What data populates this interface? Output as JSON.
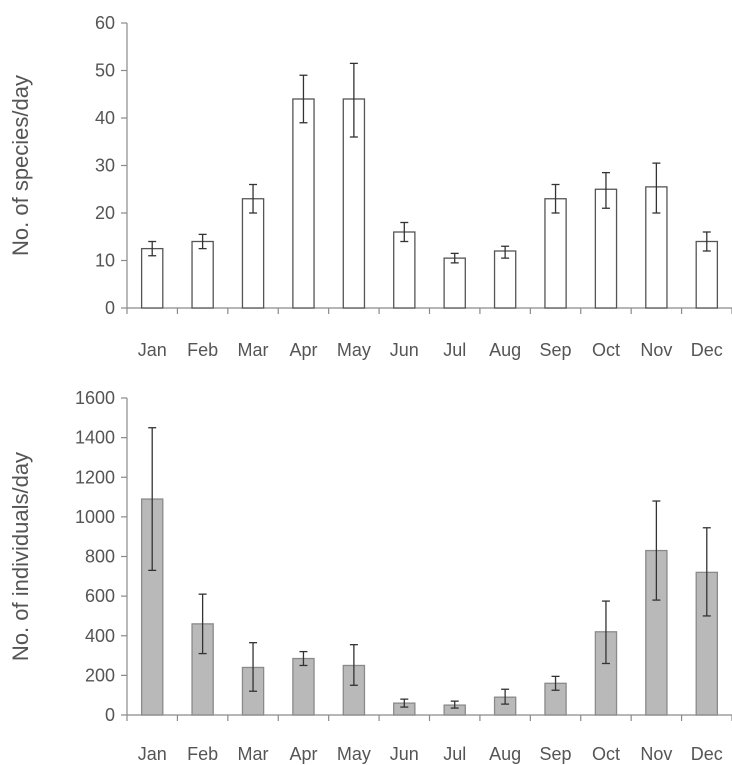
{
  "chart_data": [
    {
      "type": "bar",
      "title": "",
      "xlabel": "",
      "ylabel": "No. of species/day",
      "categories": [
        "Jan",
        "Feb",
        "Mar",
        "Apr",
        "May",
        "Jun",
        "Jul",
        "Aug",
        "Sep",
        "Oct",
        "Nov",
        "Dec"
      ],
      "values": [
        12.5,
        14,
        23,
        44,
        44,
        16,
        10.5,
        12,
        23,
        25,
        25.5,
        14
      ],
      "error_low": [
        11,
        12.5,
        20,
        39,
        36,
        14,
        9.5,
        10.5,
        20,
        21,
        20,
        12
      ],
      "error_high": [
        14,
        15.5,
        26,
        49,
        51.5,
        18,
        11.5,
        13,
        26,
        28.5,
        30.5,
        16
      ],
      "yticks": [
        "0",
        "10",
        "20",
        "30",
        "40",
        "50",
        "60"
      ],
      "ylim": [
        0,
        60
      ],
      "grid": false,
      "colors": {
        "bar_fill": "#ffffff",
        "bar_edge": "#555555"
      }
    },
    {
      "type": "bar",
      "title": "",
      "xlabel": "",
      "ylabel": "No. of individuals/day",
      "categories": [
        "Jan",
        "Feb",
        "Mar",
        "Apr",
        "May",
        "Jun",
        "Jul",
        "Aug",
        "Sep",
        "Oct",
        "Nov",
        "Dec"
      ],
      "values": [
        1090,
        460,
        240,
        285,
        250,
        60,
        50,
        90,
        160,
        420,
        830,
        720
      ],
      "error_low": [
        730,
        310,
        120,
        250,
        150,
        40,
        35,
        55,
        125,
        260,
        580,
        500
      ],
      "error_high": [
        1450,
        610,
        365,
        320,
        355,
        80,
        70,
        130,
        195,
        575,
        1080,
        945
      ],
      "yticks": [
        "0",
        "200",
        "400",
        "600",
        "800",
        "1000",
        "1200",
        "1400",
        "1600"
      ],
      "ylim": [
        0,
        1600
      ],
      "grid": false,
      "colors": {
        "bar_fill": "#b9b9b9",
        "bar_edge": "#8a8a8a"
      }
    }
  ]
}
